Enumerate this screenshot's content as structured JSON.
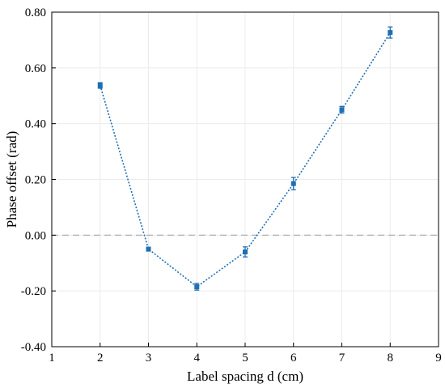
{
  "chart_data": {
    "type": "line",
    "title": "",
    "xlabel": "Label spacing d (cm)",
    "ylabel": "Phase offset (rad)",
    "xlim": [
      1,
      9
    ],
    "ylim": [
      -0.4,
      0.8
    ],
    "x_ticks": [
      "1",
      "2",
      "3",
      "4",
      "5",
      "6",
      "7",
      "8",
      "9"
    ],
    "y_ticks": [
      "-0.40",
      "-0.20",
      "0.00",
      "0.20",
      "0.40",
      "0.60",
      "0.80"
    ],
    "grid": true,
    "reference_line": {
      "y": 0.0,
      "style": "dashed",
      "color": "#a9a9a9"
    },
    "series": [
      {
        "color": "#1f6fb2",
        "line_style": "dotted",
        "marker": "square",
        "x": [
          2,
          3,
          4,
          5,
          6,
          7,
          8
        ],
        "y": [
          0.537,
          -0.05,
          -0.185,
          -0.06,
          0.185,
          0.45,
          0.727
        ],
        "error": [
          0.01,
          0.007,
          0.012,
          0.018,
          0.022,
          0.012,
          0.02
        ]
      }
    ]
  }
}
